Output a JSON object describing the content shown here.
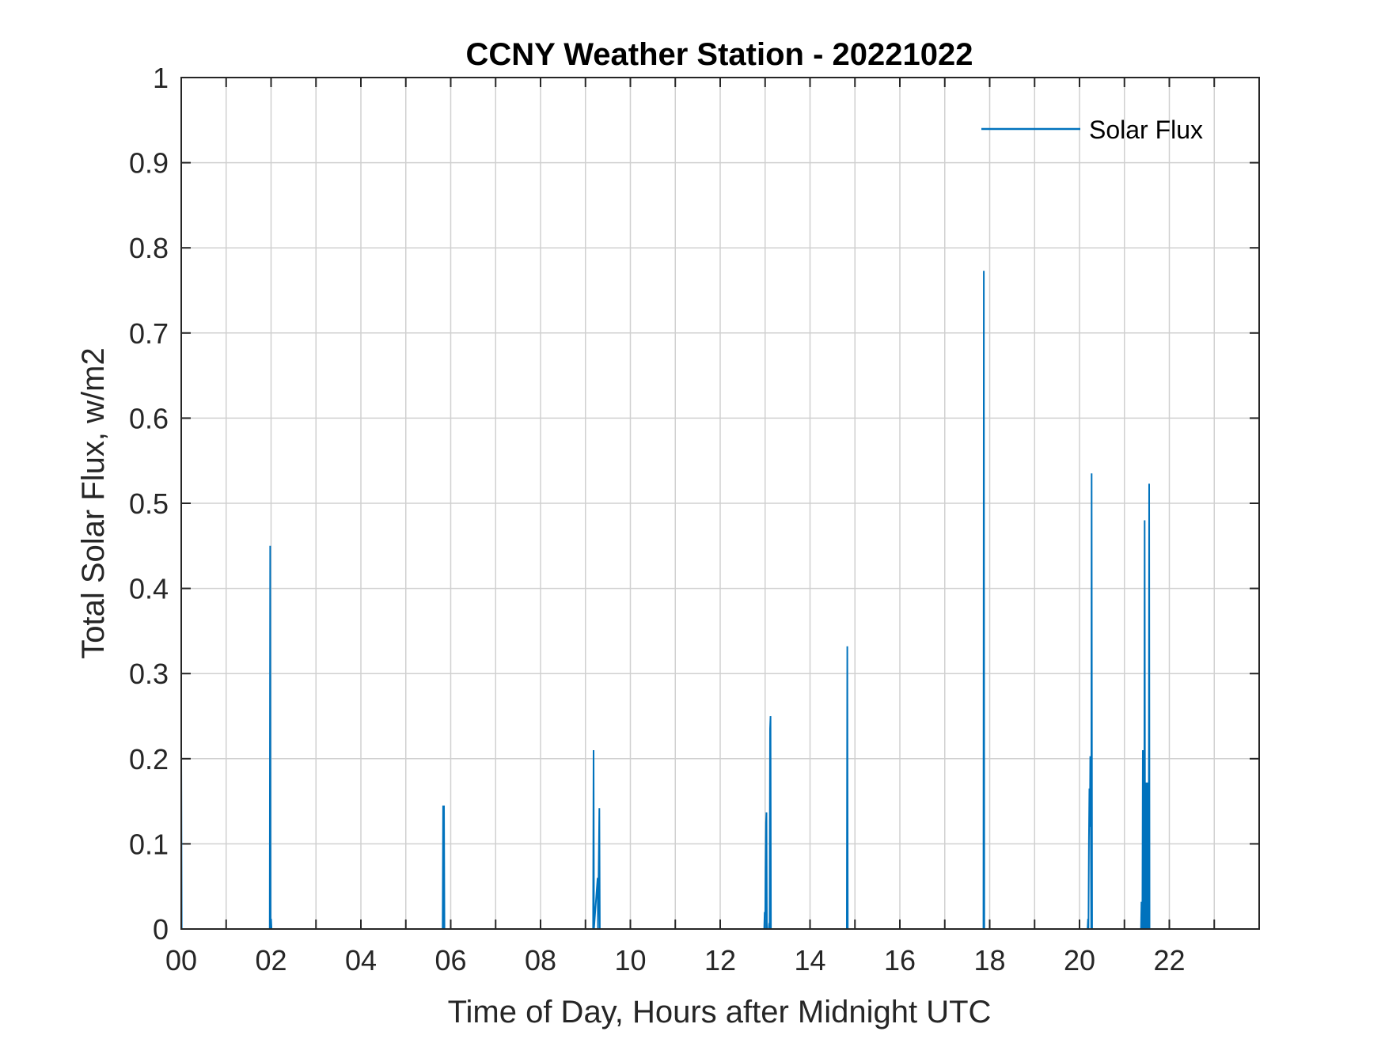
{
  "chart_data": {
    "type": "line",
    "title": "CCNY Weather Station - 20221022",
    "xlabel": "Time of Day, Hours after Midnight UTC",
    "ylabel": "Total Solar Flux, w/m2",
    "xlim": [
      0,
      24
    ],
    "ylim": [
      0,
      1
    ],
    "x_ticks": [
      0,
      2,
      4,
      6,
      8,
      10,
      12,
      14,
      16,
      18,
      20,
      22
    ],
    "x_tick_labels": [
      "00",
      "02",
      "04",
      "06",
      "08",
      "10",
      "12",
      "14",
      "16",
      "18",
      "20",
      "22"
    ],
    "x_minor_ticks": [
      1,
      3,
      5,
      7,
      9,
      11,
      13,
      15,
      17,
      19,
      21,
      23
    ],
    "y_ticks": [
      0,
      0.1,
      0.2,
      0.3,
      0.4,
      0.5,
      0.6,
      0.7,
      0.8,
      0.9,
      1
    ],
    "y_tick_labels": [
      "0",
      "0.1",
      "0.2",
      "0.3",
      "0.4",
      "0.5",
      "0.6",
      "0.7",
      "0.8",
      "0.9",
      "1"
    ],
    "grid": true,
    "legend": {
      "position": "top-right",
      "entries": [
        "Solar Flux"
      ]
    },
    "series": [
      {
        "name": "Solar Flux",
        "color": "#0072BD",
        "x": [
          0,
          0.01,
          0.02,
          1.97,
          1.98,
          1.99,
          2.0,
          2.01,
          2.02,
          5.82,
          5.83,
          5.84,
          5.85,
          5.86,
          9.17,
          9.18,
          9.19,
          9.27,
          9.28,
          9.31,
          9.32,
          9.33,
          12.98,
          12.99,
          13.0,
          13.01,
          13.02,
          13.03,
          13.04,
          13.08,
          13.09,
          13.1,
          13.11,
          13.12,
          13.13,
          13.14,
          14.82,
          14.83,
          14.84,
          17.86,
          17.87,
          17.88,
          20.18,
          20.19,
          20.2,
          20.21,
          20.22,
          20.23,
          20.24,
          20.25,
          20.26,
          20.27,
          20.28,
          20.29,
          21.37,
          21.38,
          21.39,
          21.4,
          21.41,
          21.42,
          21.43,
          21.44,
          21.45,
          21.46,
          21.47,
          21.48,
          21.49,
          21.5,
          21.51,
          21.52,
          21.53,
          21.54,
          21.55,
          21.56,
          21.57,
          21.58,
          21.59,
          21.6,
          21.61,
          21.62,
          21.63,
          21.64,
          21.65,
          21.66,
          21.67,
          21.68
        ],
        "y": [
          0.205,
          0.0,
          0.0,
          0.0,
          0.45,
          0.0,
          0.012,
          0.0,
          0.0,
          0.0,
          0.145,
          0.0,
          0.145,
          0.0,
          0.0,
          0.21,
          0.0,
          0.06,
          0.0,
          0.142,
          0.0,
          0.0,
          0.0,
          0.02,
          0.0,
          0.07,
          0.125,
          0.137,
          0.0,
          0.0,
          0.007,
          0.0,
          0.235,
          0.25,
          0.0,
          0.0,
          0.0,
          0.332,
          0.0,
          0.0,
          0.773,
          0.0,
          0.0,
          0.012,
          0.0,
          0.105,
          0.165,
          0.12,
          0.203,
          0.145,
          0.0,
          0.535,
          0.0,
          0.0,
          0.0,
          0.032,
          0.0,
          0.0,
          0.21,
          0.0,
          0.165,
          0.0,
          0.48,
          0.0,
          0.105,
          0.172,
          0.0,
          0.105,
          0.172,
          0.0,
          0.09,
          0.0,
          0.523,
          0.0,
          0.0,
          0.0,
          0.0,
          0.0,
          0.0,
          0.0,
          0.0,
          0.0,
          0.0,
          0.0,
          0.0,
          0.0
        ]
      }
    ]
  }
}
